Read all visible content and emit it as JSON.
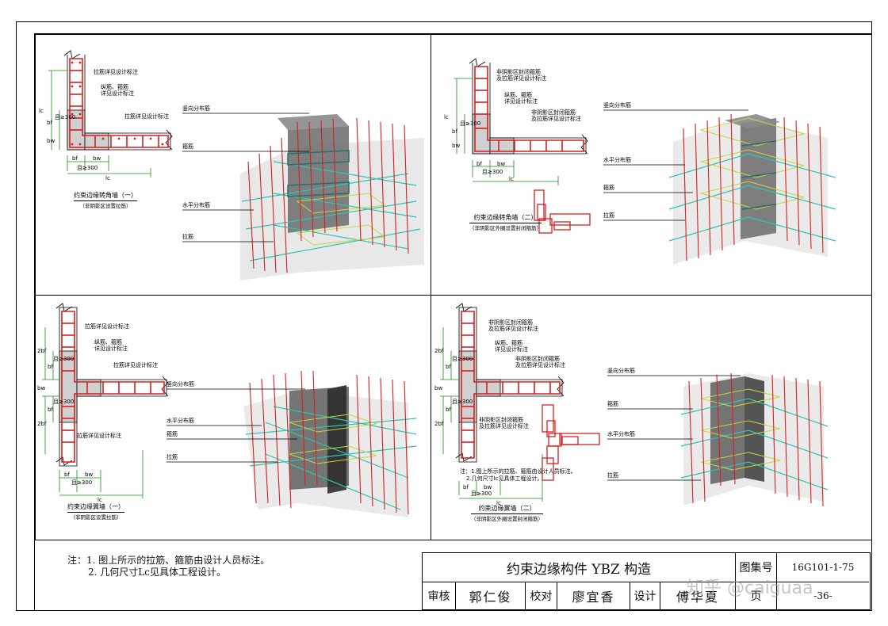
{
  "panels": [
    {
      "name": "corner-wall-1",
      "callouts": [
        "拉筋详见设计标注",
        "纵筋、箍筋",
        "详见设计标注",
        "拉筋详见设计标注"
      ],
      "dims": [
        "lc",
        "bf",
        "bw",
        "且≥300",
        "bf",
        "bw",
        "且≥300",
        "lc"
      ],
      "leaders": [
        "竖向分布筋",
        "箍筋",
        "水平分布筋",
        "拉筋"
      ],
      "caption": "约束边缘转角墙（一）",
      "caption_sub": "（非阴影区设置拉筋）"
    },
    {
      "name": "corner-wall-2",
      "callouts": [
        "非阴影区封闭箍筋",
        "及拉筋详见设计标注",
        "纵筋、箍筋",
        "详见设计标注",
        "非阴影区封闭箍筋",
        "及拉筋详见设计标注"
      ],
      "dims": [
        "lc",
        "bf",
        "bw",
        "且≥300",
        "bf",
        "bw",
        "且≥300",
        "lc"
      ],
      "leaders": [
        "竖向分布筋",
        "水平分布筋",
        "箍筋",
        "拉筋"
      ],
      "caption": "约束边缘转角墙（二）",
      "caption_sub": "（非阴影区外圈设置封闭箍筋）"
    },
    {
      "name": "wing-wall-1",
      "callouts": [
        "拉筋详见设计标注",
        "纵筋、箍筋",
        "详见设计标注",
        "拉筋详见设计标注",
        "拉筋详见设计标注"
      ],
      "dims": [
        "2bf",
        "bf",
        "且≥300",
        "bw",
        "bf",
        "且≥300",
        "2bf",
        "bf",
        "bw",
        "且≥300",
        "lc"
      ],
      "leaders": [
        "竖向分布筋",
        "水平分布筋",
        "箍筋",
        "拉筋"
      ],
      "caption": "约束边缘翼墙（一）",
      "caption_sub": "（非阴影区设置拉筋）"
    },
    {
      "name": "wing-wall-2",
      "callouts": [
        "非阴影区封闭箍筋",
        "及拉筋详见设计标注",
        "纵筋、箍筋",
        "详见设计标注",
        "非阴影区封闭箍筋",
        "及拉筋详见设计标注",
        "非阴影区封闭箍筋",
        "及拉筋详见设计标注"
      ],
      "dims": [
        "2bf",
        "bf",
        "且≥300",
        "bw",
        "bf",
        "且≥300",
        "2bf",
        "bf",
        "bw",
        "且≥300",
        "lc"
      ],
      "note_lines": [
        "注：1.图上所示的拉筋、箍筋由设计人员标注。",
        "2.几何尺寸lc见具体工程设计。"
      ],
      "leaders": [
        "竖向分布筋",
        "箍筋",
        "水平分布筋",
        "拉筋"
      ],
      "caption": "约束边缘翼墙（二）",
      "caption_sub": "（非阴影区外圈设置封闭箍筋）"
    }
  ],
  "notes": [
    "注：1. 图上所示的拉筋、箍筋由设计人员标注。",
    "2. 几何尺寸Lc见具体工程设计。"
  ],
  "title_block": {
    "title": "约束边缘构件 YBZ 构造",
    "atlas_label": "图集号",
    "atlas_no": "16G101-1-75",
    "review_label": "审核",
    "review_name": "郭仁俊",
    "check_label": "校对",
    "check_name": "廖宜香",
    "design_label": "设计",
    "design_name": "傅华夏",
    "page_label": "页",
    "page_no": "-36-"
  },
  "watermark": "知乎 @caiguaa",
  "colors": {
    "rebar_red": "#d42020",
    "tie_cyan": "#2fc4b0",
    "stirrup_teal": "#1f6f6f",
    "shade_gray": "#c8c8c8",
    "hoop_yellow": "#c8d640"
  }
}
